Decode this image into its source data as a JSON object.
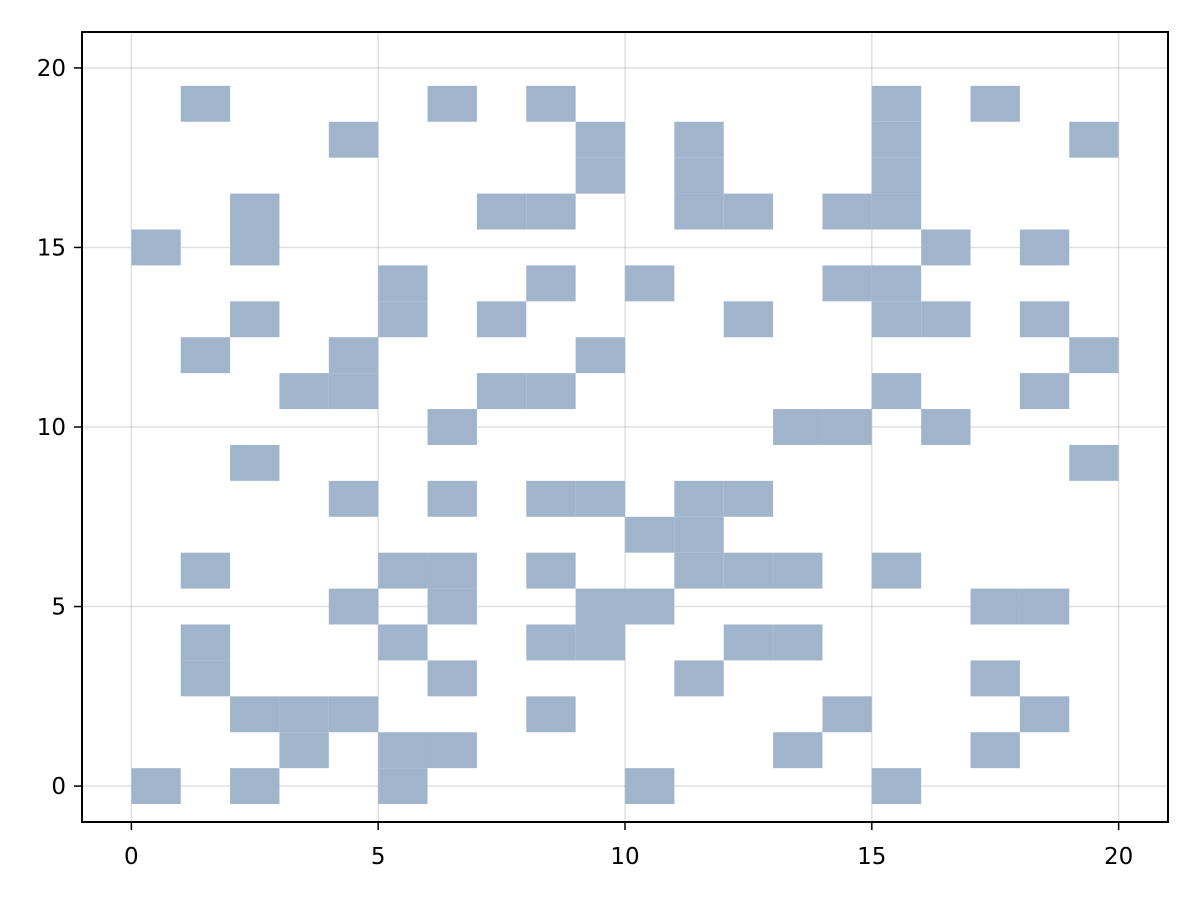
{
  "chart_data": {
    "type": "heatmap",
    "title": "",
    "xlabel": "",
    "ylabel": "",
    "xlim": [
      -1,
      21
    ],
    "ylim": [
      -1,
      21
    ],
    "x_ticks": [
      0,
      5,
      10,
      15,
      20
    ],
    "y_ticks": [
      0,
      5,
      10,
      15,
      20
    ],
    "x_tick_labels": [
      "0",
      "5",
      "10",
      "15",
      "20"
    ],
    "y_tick_labels": [
      "0",
      "5",
      "10",
      "15",
      "20"
    ],
    "grid": true,
    "cell_color": "#a0b5cc",
    "cells": [
      [
        0,
        0
      ],
      [
        2,
        0
      ],
      [
        5,
        0
      ],
      [
        10,
        0
      ],
      [
        15,
        0
      ],
      [
        3,
        1
      ],
      [
        5,
        1
      ],
      [
        6,
        1
      ],
      [
        13,
        1
      ],
      [
        17,
        1
      ],
      [
        2,
        2
      ],
      [
        3,
        2
      ],
      [
        4,
        2
      ],
      [
        8,
        2
      ],
      [
        14,
        2
      ],
      [
        18,
        2
      ],
      [
        1,
        3
      ],
      [
        6,
        3
      ],
      [
        11,
        3
      ],
      [
        17,
        3
      ],
      [
        1,
        4
      ],
      [
        5,
        4
      ],
      [
        8,
        4
      ],
      [
        9,
        4
      ],
      [
        12,
        4
      ],
      [
        13,
        4
      ],
      [
        4,
        5
      ],
      [
        6,
        5
      ],
      [
        9,
        5
      ],
      [
        10,
        5
      ],
      [
        17,
        5
      ],
      [
        18,
        5
      ],
      [
        1,
        6
      ],
      [
        5,
        6
      ],
      [
        6,
        6
      ],
      [
        8,
        6
      ],
      [
        11,
        6
      ],
      [
        12,
        6
      ],
      [
        13,
        6
      ],
      [
        15,
        6
      ],
      [
        10,
        7
      ],
      [
        11,
        7
      ],
      [
        4,
        8
      ],
      [
        6,
        8
      ],
      [
        8,
        8
      ],
      [
        9,
        8
      ],
      [
        11,
        8
      ],
      [
        12,
        8
      ],
      [
        2,
        9
      ],
      [
        19,
        9
      ],
      [
        6,
        10
      ],
      [
        13,
        10
      ],
      [
        14,
        10
      ],
      [
        16,
        10
      ],
      [
        3,
        11
      ],
      [
        4,
        11
      ],
      [
        7,
        11
      ],
      [
        8,
        11
      ],
      [
        15,
        11
      ],
      [
        18,
        11
      ],
      [
        1,
        12
      ],
      [
        4,
        12
      ],
      [
        9,
        12
      ],
      [
        19,
        12
      ],
      [
        2,
        13
      ],
      [
        5,
        13
      ],
      [
        7,
        13
      ],
      [
        12,
        13
      ],
      [
        15,
        13
      ],
      [
        16,
        13
      ],
      [
        18,
        13
      ],
      [
        5,
        14
      ],
      [
        8,
        14
      ],
      [
        10,
        14
      ],
      [
        14,
        14
      ],
      [
        15,
        14
      ],
      [
        0,
        15
      ],
      [
        2,
        15
      ],
      [
        16,
        15
      ],
      [
        18,
        15
      ],
      [
        2,
        16
      ],
      [
        7,
        16
      ],
      [
        8,
        16
      ],
      [
        11,
        16
      ],
      [
        12,
        16
      ],
      [
        14,
        16
      ],
      [
        15,
        16
      ],
      [
        9,
        17
      ],
      [
        11,
        17
      ],
      [
        15,
        17
      ],
      [
        4,
        18
      ],
      [
        9,
        18
      ],
      [
        11,
        18
      ],
      [
        15,
        18
      ],
      [
        19,
        18
      ],
      [
        1,
        19
      ],
      [
        6,
        19
      ],
      [
        8,
        19
      ],
      [
        15,
        19
      ],
      [
        17,
        19
      ]
    ]
  }
}
